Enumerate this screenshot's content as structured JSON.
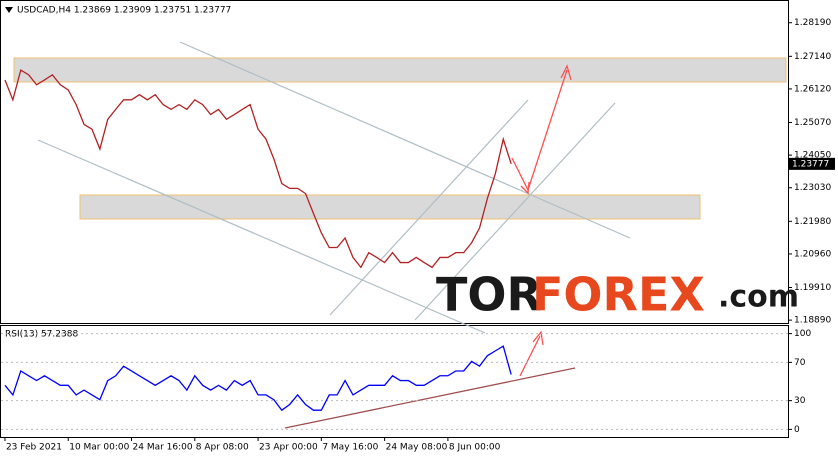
{
  "chart_data": [
    {
      "type": "line",
      "title": "USDCAD,H4 1.23869 1.23909 1.23751 1.23777",
      "watermark": [
        "TOR",
        "FOREX",
        ".com"
      ],
      "xlim": [
        -0.5,
        99
      ],
      "xticks": [
        {
          "value": 0,
          "label": "23 Feb 2021"
        },
        {
          "value": 8,
          "label": "10 Mar 00:00"
        },
        {
          "value": 16,
          "label": "24 Mar 16:00"
        },
        {
          "value": 24,
          "label": "8 Apr 08:00"
        },
        {
          "value": 32,
          "label": "23 Apr 00:00"
        },
        {
          "value": 40,
          "label": "7 May 16:00"
        },
        {
          "value": 48,
          "label": "24 May 08:00"
        },
        {
          "value": 56,
          "label": "8 Jun 00:00"
        }
      ],
      "ylim": [
        1.188,
        1.2887
      ],
      "yticks": [
        {
          "value": 1.2819,
          "label": "1.28190"
        },
        {
          "value": 1.2714,
          "label": "1.27140"
        },
        {
          "value": 1.2612,
          "label": "1.26120"
        },
        {
          "value": 1.2507,
          "label": "1.25070"
        },
        {
          "value": 1.2405,
          "label": "1.24050"
        },
        {
          "value": 1.2303,
          "label": "1.23030"
        },
        {
          "value": 1.2198,
          "label": "1.21980"
        },
        {
          "value": 1.2096,
          "label": "1.20960"
        },
        {
          "value": 1.1991,
          "label": "1.19910"
        },
        {
          "value": 1.1889,
          "label": "1.18890"
        }
      ],
      "last_price": 1.23777,
      "series": [
        {
          "name": "USDCAD",
          "color": "#b22222",
          "values": [
            1.264,
            1.2578,
            1.2671,
            1.2656,
            1.2625,
            1.264,
            1.2656,
            1.2625,
            1.2609,
            1.2563,
            1.2501,
            1.2486,
            1.2424,
            1.2517,
            1.2548,
            1.2578,
            1.2578,
            1.2594,
            1.2578,
            1.2594,
            1.2563,
            1.2548,
            1.2563,
            1.2548,
            1.2578,
            1.2563,
            1.2532,
            1.2548,
            1.2517,
            1.2532,
            1.2548,
            1.2563,
            1.2486,
            1.2455,
            1.2393,
            1.2316,
            1.2301,
            1.2301,
            1.2285,
            1.2223,
            1.2162,
            1.2116,
            1.2116,
            1.2146,
            1.2085,
            1.2054,
            1.21,
            1.2085,
            1.2069,
            1.21,
            1.2069,
            1.2069,
            1.2085,
            1.2069,
            1.2054,
            1.2085,
            1.2085,
            1.21,
            1.21,
            1.2131,
            1.2177,
            1.227,
            1.2347,
            1.2455,
            1.23777
          ]
        }
      ]
    },
    {
      "type": "line",
      "title": "RSI(13) 57.2388",
      "xlim": [
        -0.5,
        99
      ],
      "ylim": [
        -8,
        108
      ],
      "yticks": [
        0,
        30,
        70,
        100
      ],
      "series": [
        {
          "name": "RSI(13)",
          "color": "#0000ff",
          "values": [
            46,
            36,
            61,
            56,
            51,
            56,
            51,
            46,
            46,
            36,
            41,
            36,
            31,
            51,
            56,
            66,
            61,
            56,
            51,
            46,
            51,
            56,
            51,
            41,
            56,
            46,
            41,
            46,
            41,
            51,
            46,
            51,
            36,
            36,
            31,
            20,
            26,
            36,
            26,
            20,
            20,
            36,
            36,
            51,
            36,
            41,
            46,
            46,
            46,
            56,
            51,
            51,
            46,
            46,
            51,
            56,
            56,
            61,
            61,
            71,
            66,
            77,
            82,
            87,
            57.2388
          ]
        }
      ]
    }
  ]
}
